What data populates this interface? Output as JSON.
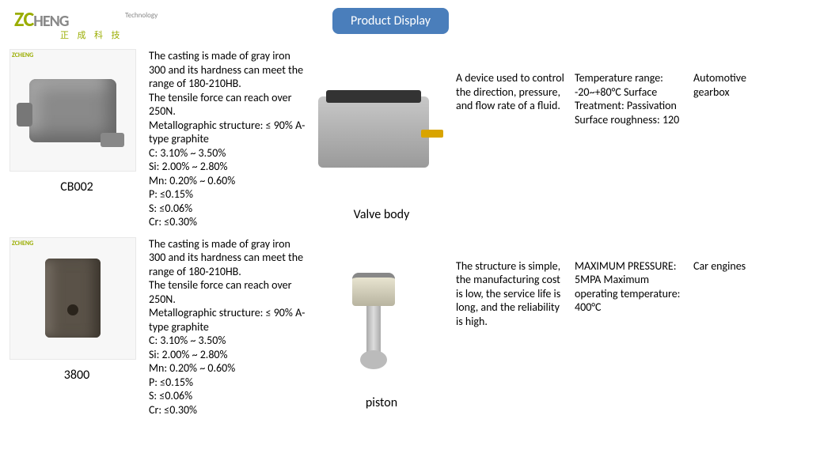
{
  "logo": {
    "brand_z": "Z",
    "brand_c": "C",
    "brand_rest": "HENG",
    "tech": "Technology",
    "chinese": "正 成 科 技"
  },
  "title_button": "Product Display",
  "title_button_bg": "#4a7ebb",
  "title_button_fg": "#ffffff",
  "rows": [
    {
      "left_caption": "CB002",
      "left_spec": "The casting is made of gray iron 300 and its hardness can meet the range of 180-210HB.\nThe tensile force can reach over 250N.\nMetallographic structure: ≤ 90% A-type graphite\nC: 3.10% ~ 3.50%\nSi: 2.00% ~ 2.80%\nMn: 0.20% ~ 0.60%\nP: ≤0.15%\nS: ≤0.06%\nCr: ≤0.30%",
      "right_caption": "Valve body",
      "right_desc": "A device used to control the direction, pressure, and flow rate of a fluid.",
      "right_temp": "Temperature range: -20~+80°C\nSurface Treatment: Passivation\nSurface roughness: 120",
      "right_app": "Automotive gearbox"
    },
    {
      "left_caption": "3800",
      "left_spec": "The casting is made of gray iron 300 and its hardness can meet the range of 180-210HB.\nThe tensile force can reach over 250N.\nMetallographic structure: ≤ 90% A-type graphite\nC: 3.10% ~ 3.50%\nSi: 2.00% ~ 2.80%\nMn: 0.20% ~ 0.60%\nP: ≤0.15%\nS: ≤0.06%\nCr: ≤0.30%",
      "right_caption": "piston",
      "right_desc": "The structure is simple, the manufacturing cost is low, the service life is long, and the reliability is high.",
      "right_temp": "MAXIMUM PRESSURE: 5MPA\nMaximum operating temperature: 400°C",
      "right_app": "Car engines"
    }
  ],
  "watermark": "ZCHENG"
}
